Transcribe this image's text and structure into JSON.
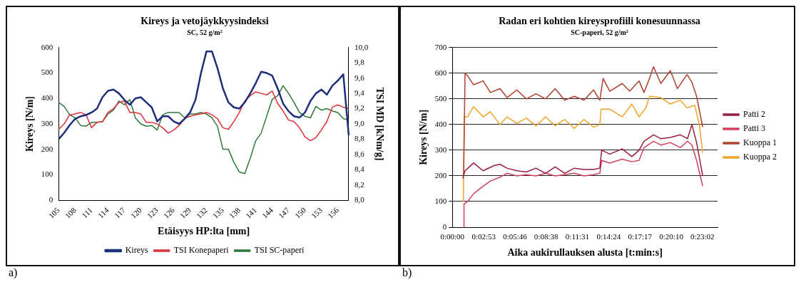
{
  "chart_data": [
    {
      "type": "line",
      "title": "Kireys ja vetojäykkyysindeksi",
      "subtitle": "SC, 52 g/m²",
      "xlabel": "Etäisyys HP:lta [mm]",
      "ylabel": "Kireys [N/m]",
      "y2label": "TSI MD [kNm/g]",
      "categories": [
        "105",
        null,
        null,
        "108",
        null,
        null,
        "111",
        null,
        null,
        "114",
        null,
        null,
        "117",
        null,
        null,
        "120",
        null,
        null,
        "123",
        null,
        null,
        "126",
        null,
        null,
        "129",
        null,
        null,
        "132",
        null,
        null,
        "135",
        null,
        null,
        "138",
        null,
        null,
        "141",
        null,
        null,
        "144",
        null,
        null,
        "147",
        null,
        null,
        "150",
        null,
        null,
        "153",
        null,
        null,
        "156",
        null,
        null
      ],
      "series": [
        {
          "name": "Kireys",
          "color": "#1f2f7a",
          "values": [
            240,
            265,
            295,
            320,
            330,
            335,
            345,
            360,
            405,
            430,
            435,
            420,
            395,
            375,
            400,
            405,
            385,
            365,
            310,
            330,
            330,
            310,
            300,
            320,
            345,
            395,
            500,
            585,
            585,
            520,
            440,
            385,
            365,
            360,
            385,
            420,
            460,
            505,
            500,
            490,
            440,
            380,
            350,
            330,
            325,
            345,
            390,
            420,
            435,
            415,
            450,
            470,
            495,
            255
          ]
        },
        {
          "name": "TSI Konepaperi",
          "color": "#e0303a",
          "axis": "y2",
          "values": [
            8.93,
            9.0,
            9.12,
            9.13,
            9.15,
            9.12,
            8.95,
            9.02,
            9.03,
            9.15,
            9.2,
            9.28,
            9.3,
            9.15,
            9.15,
            9.13,
            9.02,
            9.02,
            9.0,
            8.95,
            8.88,
            8.92,
            8.98,
            9.07,
            9.1,
            9.12,
            9.13,
            9.15,
            9.12,
            9.07,
            8.95,
            8.93,
            9.03,
            9.15,
            9.3,
            9.37,
            9.42,
            9.4,
            9.38,
            9.43,
            9.27,
            9.17,
            9.05,
            9.03,
            8.95,
            8.83,
            8.78,
            8.82,
            8.92,
            9.03,
            9.22,
            9.25,
            9.22,
            9.2
          ]
        },
        {
          "name": "TSI SC-paperi",
          "color": "#2e7a3a",
          "axis": "y2",
          "values": [
            9.28,
            9.23,
            9.12,
            9.08,
            8.98,
            8.97,
            9.02,
            9.02,
            9.03,
            9.13,
            9.18,
            9.3,
            9.25,
            9.32,
            9.08,
            9.0,
            8.97,
            8.98,
            8.92,
            9.12,
            9.15,
            9.15,
            9.15,
            9.08,
            9.13,
            9.13,
            9.15,
            9.13,
            9.08,
            8.97,
            8.67,
            8.67,
            8.5,
            8.37,
            8.35,
            8.55,
            8.78,
            8.88,
            9.1,
            9.32,
            9.37,
            9.5,
            9.4,
            9.28,
            9.15,
            9.1,
            9.08,
            9.23,
            9.18,
            9.2,
            9.17,
            9.15,
            9.07,
            9.05
          ]
        }
      ],
      "ylim": [
        0,
        600
      ],
      "yticks": [
        0,
        100,
        200,
        300,
        400,
        500,
        600
      ],
      "y2lim": [
        8.0,
        10.0
      ],
      "y2ticks": [
        {
          "value": 8.0,
          "label": "8,0"
        },
        {
          "value": 8.2,
          "label": "8,2"
        },
        {
          "value": 8.4,
          "label": "8,4"
        },
        {
          "value": 8.6,
          "label": "8,6"
        },
        {
          "value": 8.8,
          "label": "8,8"
        },
        {
          "value": 9.0,
          "label": "9,0"
        },
        {
          "value": 9.2,
          "label": "9,2"
        },
        {
          "value": 9.4,
          "label": "9,4"
        },
        {
          "value": 9.6,
          "label": "9,6"
        },
        {
          "value": 9.8,
          "label": "9,8"
        },
        {
          "value": 10.0,
          "label": "10,0"
        }
      ],
      "legend": "bottom",
      "marker": "none",
      "line_style": "solid",
      "annotations": [
        "a)"
      ]
    },
    {
      "type": "line",
      "title": "Radan eri kohtien kireysprofiili konesuunnassa",
      "subtitle": "SC-paperi, 52 g/m²",
      "xlabel": "Aika aukirullauksen alusta [t:min:s]",
      "ylabel": "Kireys [N/m]",
      "series": [
        {
          "name": "Patti 2",
          "color": "#9a1e3c",
          "x": [
            0.0158,
            0.0194,
            0.0325,
            0.0472,
            0.0639,
            0.0731,
            0.0839,
            0.0989,
            0.1136,
            0.1283,
            0.1431,
            0.1578,
            0.1725,
            0.1872,
            0.2019,
            0.2167,
            0.2264,
            0.2292,
            0.2417,
            0.2608,
            0.2756,
            0.2867,
            0.2942,
            0.3089,
            0.32,
            0.3347,
            0.35,
            0.3611,
            0.3678,
            0.375,
            0.3844
          ],
          "values": [
            190,
            220,
            250,
            220,
            240,
            245,
            230,
            220,
            215,
            230,
            210,
            235,
            210,
            230,
            225,
            225,
            230,
            300,
            285,
            305,
            275,
            300,
            335,
            360,
            345,
            350,
            360,
            345,
            400,
            330,
            200
          ]
        },
        {
          "name": "Patti 3",
          "color": "#d0405e",
          "x": [
            0.0172,
            0.0178,
            0.0233,
            0.0325,
            0.0472,
            0.0583,
            0.0731,
            0.0839,
            0.0989,
            0.1136,
            0.1283,
            0.1431,
            0.1578,
            0.1725,
            0.1872,
            0.2019,
            0.2167,
            0.2264,
            0.2292,
            0.2417,
            0.2608,
            0.2756,
            0.2867,
            0.2942,
            0.3089,
            0.32,
            0.3347,
            0.35,
            0.3611,
            0.3678,
            0.375,
            0.3844
          ],
          "values": [
            0,
            90,
            100,
            130,
            160,
            180,
            195,
            210,
            200,
            205,
            200,
            210,
            200,
            205,
            210,
            200,
            205,
            210,
            260,
            250,
            265,
            255,
            260,
            310,
            335,
            320,
            330,
            310,
            335,
            320,
            260,
            160
          ]
        },
        {
          "name": "Kuoppa 1",
          "color": "#b0402e",
          "x": [
            0.0172,
            0.0194,
            0.0233,
            0.0325,
            0.0472,
            0.0583,
            0.0731,
            0.0839,
            0.0989,
            0.1136,
            0.1283,
            0.1431,
            0.1578,
            0.1725,
            0.1872,
            0.2019,
            0.2167,
            0.2264,
            0.2314,
            0.2417,
            0.2608,
            0.2722,
            0.2867,
            0.2942,
            0.3028,
            0.3089,
            0.32,
            0.3347,
            0.3456,
            0.3603,
            0.3678,
            0.375,
            0.3844
          ],
          "values": [
            200,
            600,
            590,
            555,
            570,
            525,
            540,
            505,
            535,
            500,
            520,
            500,
            540,
            495,
            510,
            495,
            535,
            495,
            580,
            530,
            560,
            530,
            570,
            525,
            580,
            625,
            560,
            610,
            540,
            595,
            565,
            510,
            390
          ]
        },
        {
          "name": "Kuoppa 2",
          "color": "#f0a428",
          "x": [
            0.0167,
            0.0183,
            0.0233,
            0.0325,
            0.0472,
            0.0583,
            0.0731,
            0.0839,
            0.0989,
            0.1136,
            0.1283,
            0.1431,
            0.1578,
            0.1725,
            0.1872,
            0.2019,
            0.2167,
            0.2264,
            0.2283,
            0.2417,
            0.2608,
            0.2756,
            0.2867,
            0.2972,
            0.3028,
            0.32,
            0.3347,
            0.35,
            0.3603,
            0.3722,
            0.3792,
            0.3844
          ],
          "values": [
            100,
            430,
            430,
            470,
            430,
            450,
            400,
            430,
            405,
            425,
            395,
            430,
            395,
            420,
            385,
            420,
            390,
            400,
            460,
            460,
            430,
            480,
            430,
            465,
            510,
            505,
            480,
            495,
            465,
            475,
            400,
            290
          ]
        }
      ],
      "xlim": [
        0,
        0.4072
      ],
      "xticks": [
        {
          "value": 0,
          "label": "0:00:00"
        },
        {
          "value": 0.0481,
          "label": "0:02:53"
        },
        {
          "value": 0.0961,
          "label": "0:05:46"
        },
        {
          "value": 0.1439,
          "label": "0:08:38"
        },
        {
          "value": 0.1919,
          "label": "0:11:31"
        },
        {
          "value": 0.24,
          "label": "0:14:24"
        },
        {
          "value": 0.2881,
          "label": "0:17:17"
        },
        {
          "value": 0.3361,
          "label": "0:20:10"
        },
        {
          "value": 0.3839,
          "label": "0:23:02"
        }
      ],
      "ylim": [
        0,
        700
      ],
      "yticks": [
        0,
        100,
        200,
        300,
        400,
        500,
        600,
        700
      ],
      "grid": "y",
      "legend": "right",
      "marker": "none",
      "line_style": "solid",
      "annotations": [
        "b)"
      ]
    }
  ]
}
